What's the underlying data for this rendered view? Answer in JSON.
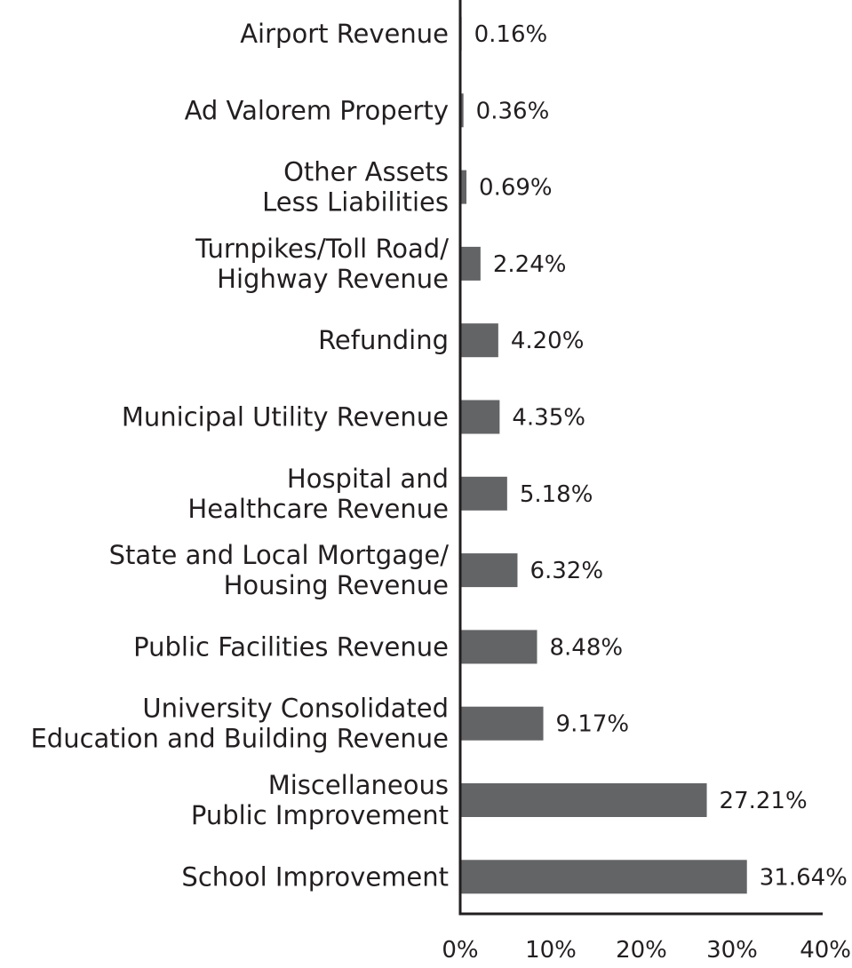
{
  "chart_data": {
    "type": "bar",
    "orientation": "horizontal",
    "categories": [
      [
        "Airport Revenue"
      ],
      [
        "Ad Valorem Property"
      ],
      [
        "Other Assets",
        "Less Liabilities"
      ],
      [
        "Turnpikes/Toll Road/",
        "Highway Revenue"
      ],
      [
        "Refunding"
      ],
      [
        "Municipal Utility Revenue"
      ],
      [
        "Hospital and",
        "Healthcare Revenue"
      ],
      [
        "State and Local Mortgage/",
        "Housing Revenue"
      ],
      [
        "Public Facilities Revenue"
      ],
      [
        "University Consolidated",
        "Education and Building Revenue"
      ],
      [
        "Miscellaneous",
        "Public Improvement"
      ],
      [
        "School Improvement"
      ]
    ],
    "values": [
      0.16,
      0.36,
      0.69,
      2.24,
      4.2,
      4.35,
      5.18,
      6.32,
      8.48,
      9.17,
      27.21,
      31.64
    ],
    "value_labels": [
      "0.16%",
      "0.36%",
      "0.69%",
      "2.24%",
      "4.20%",
      "4.35%",
      "5.18%",
      "6.32%",
      "8.48%",
      "9.17%",
      "27.21%",
      "31.64%"
    ],
    "xlim": [
      0,
      40
    ],
    "x_ticks": [
      0,
      10,
      20,
      30,
      40
    ],
    "x_tick_labels": [
      "0%",
      "10%",
      "20%",
      "30%",
      "40%"
    ],
    "title": "",
    "xlabel": "",
    "ylabel": "",
    "grid": false,
    "bar_color": "#636466",
    "axis_color": "#231f20"
  }
}
